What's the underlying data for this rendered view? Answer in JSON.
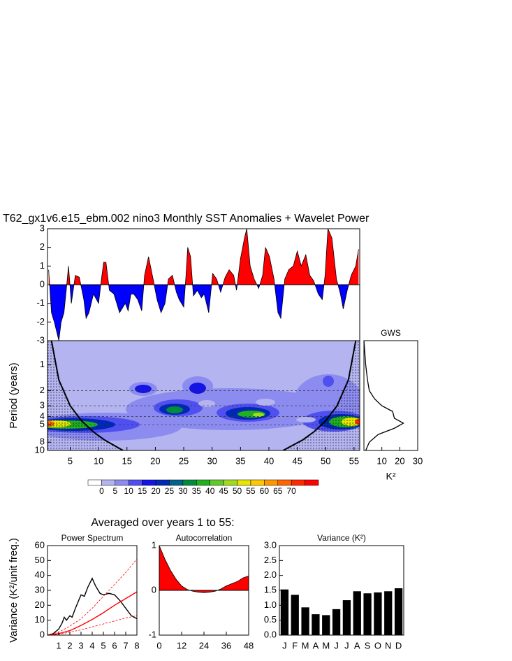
{
  "title": "T62_gx1v6.e15_ebm.002 nino3 Monthly SST Anomalies + Wavelet Power",
  "subheading": "Averaged over years 1 to 55:",
  "chart_data": [
    {
      "type": "area",
      "color": "#ff0000",
      "negative_color": "#0000ff",
      "xlim": [
        1,
        56
      ],
      "ylim": [
        -3,
        3
      ],
      "yticks": [
        -3,
        -2,
        -1,
        0,
        1,
        2,
        3
      ],
      "x": [
        1.2,
        1.7,
        2.2,
        3,
        3.4,
        3.9,
        4.3,
        4.7,
        5.2,
        5.9,
        6.6,
        7.4,
        7.8,
        8.3,
        9.1,
        10,
        10.5,
        10.9,
        11.3,
        11.9,
        12.7,
        13.7,
        14.7,
        15.2,
        15.7,
        16.2,
        16.9,
        17.6,
        18.1,
        18.8,
        19.6,
        20.3,
        21,
        21.7,
        22.3,
        23,
        23.7,
        24.2,
        25,
        25.4,
        25.7,
        26.2,
        26.7,
        27.4,
        28.1,
        28.6,
        29.4,
        30.1,
        30.8,
        31.5,
        32.3,
        33,
        33.8,
        34.3,
        35,
        35.7,
        36.1,
        36.7,
        37.4,
        38.2,
        38.9,
        39.4,
        40.1,
        40.9,
        41.6,
        42.1,
        42.8,
        43.5,
        44.3,
        45,
        45.7,
        46.5,
        47.2,
        47.9,
        48.7,
        49.4,
        49.9,
        50.4,
        51.1,
        51.9,
        52.6,
        53.1,
        53.8,
        54.5,
        55.3,
        55.8
      ],
      "values": [
        0.8,
        -1.5,
        -2,
        -3,
        -2,
        -1.5,
        -0.3,
        1,
        -1,
        0.5,
        0.4,
        -0.8,
        -1.8,
        -1.5,
        -0.5,
        -1,
        0.3,
        1.2,
        1.2,
        -0.3,
        -0.5,
        -1.5,
        -1,
        -1.4,
        -0.5,
        -0.5,
        -0.8,
        -1.4,
        0.5,
        1.5,
        0.3,
        -0.8,
        -1.5,
        -1,
        0.3,
        0.5,
        -0.4,
        -0.8,
        -1.2,
        0.5,
        2,
        1.5,
        -0.6,
        -0.3,
        -0.7,
        -0.5,
        -1.5,
        0.6,
        0.3,
        -0.4,
        0.4,
        0.8,
        0.5,
        -0.3,
        1.4,
        2.5,
        3,
        1,
        0.3,
        -0.2,
        0.5,
        2,
        1.5,
        0.3,
        -1.5,
        -1.8,
        0.3,
        0.8,
        1,
        1.8,
        1,
        1.6,
        0.5,
        0.2,
        -0.5,
        -0.8,
        0.5,
        3,
        2.5,
        0.3,
        -0.5,
        -1.3,
        -0.3,
        0.5,
        1,
        1.9
      ]
    },
    {
      "type": "contour",
      "ylabel": "Period (years)",
      "xlim": [
        1,
        56
      ],
      "xticks": [
        5,
        10,
        15,
        20,
        25,
        30,
        35,
        40,
        45,
        50,
        55
      ],
      "ylim": [
        0.52,
        10
      ],
      "log_y": true,
      "y_reversed": true,
      "yticks": [
        1,
        2,
        3,
        4,
        5,
        8,
        10
      ],
      "hlines": [
        2,
        3,
        4,
        5
      ],
      "cone_of_influence": [
        {
          "x": [
            1.7,
            3,
            5,
            7,
            9,
            11,
            14.3
          ],
          "period": [
            0.52,
            1.5,
            3,
            4.5,
            6,
            7.5,
            10
          ]
        },
        {
          "x": [
            55.3,
            54,
            52,
            50,
            48,
            46,
            42.5
          ],
          "period": [
            0.52,
            1.5,
            3,
            4.5,
            6,
            7.5,
            10
          ]
        }
      ],
      "colorbar": {
        "levels": [
          0,
          5,
          10,
          15,
          20,
          25,
          30,
          35,
          40,
          45,
          50,
          55,
          60,
          65,
          70
        ],
        "colors": [
          "#ffffff",
          "#b4b4f0",
          "#8c8cf0",
          "#5050f0",
          "#1414e6",
          "#0028b4",
          "#00648c",
          "#008c3c",
          "#20b020",
          "#64c828",
          "#a0dc1e",
          "#e6e600",
          "#ffc800",
          "#ff9600",
          "#ff6400",
          "#ff2800",
          "#ff0000"
        ]
      }
    },
    {
      "type": "line",
      "orientation": "horizontal",
      "title": "GWS",
      "xlabel": "K²",
      "xlim": [
        0,
        30
      ],
      "xticks": [
        10,
        20,
        30
      ],
      "ylim": [
        0.52,
        10
      ],
      "log_y": true,
      "y_reversed": true,
      "periods": [
        0.52,
        1,
        1.5,
        2,
        2.5,
        3,
        3.5,
        4.2,
        4.8,
        5.5,
        6.5,
        8,
        10
      ],
      "values": [
        0,
        1,
        2,
        3,
        6,
        10,
        16,
        17,
        22,
        17,
        8,
        3,
        1
      ],
      "color": "#000000"
    },
    {
      "type": "line",
      "title": "Power Spectrum",
      "ylabel": "Variance (K²/unit freq.)",
      "xlim": [
        0,
        8
      ],
      "xticks": [
        1,
        2,
        3,
        4,
        5,
        6,
        7,
        8
      ],
      "ylim": [
        0,
        60
      ],
      "yticks": [
        0,
        10,
        20,
        30,
        40,
        50,
        60
      ],
      "series": [
        {
          "color": "#000000",
          "dash": false,
          "x": [
            0,
            0.5,
            1,
            1.3,
            1.5,
            1.7,
            2,
            2.2,
            2.5,
            3,
            3.3,
            3.6,
            4,
            4.3,
            4.7,
            5,
            5.5,
            6,
            6.5,
            7,
            7.5,
            8
          ],
          "values": [
            0,
            1,
            4,
            8,
            12,
            10,
            13,
            12,
            18,
            27,
            26,
            32,
            38,
            33,
            28,
            27,
            28,
            27,
            23,
            18,
            13,
            11
          ]
        },
        {
          "color": "#ff0000",
          "dash": false,
          "x": [
            0,
            1,
            2,
            3,
            4,
            5,
            6,
            7,
            8
          ],
          "values": [
            0,
            1,
            3,
            6.5,
            10.5,
            15,
            20,
            24.5,
            29
          ]
        },
        {
          "color": "#ff0000",
          "dash": true,
          "x": [
            0,
            1,
            2,
            3,
            4,
            5,
            6,
            7,
            8
          ],
          "values": [
            0,
            2,
            6,
            11,
            18,
            26,
            34,
            42,
            51
          ]
        },
        {
          "color": "#ff0000",
          "dash": true,
          "x": [
            0,
            1,
            2,
            3,
            4,
            5,
            6,
            7,
            8
          ],
          "values": [
            0,
            0.5,
            2,
            3.5,
            5.5,
            7.5,
            9.5,
            11.5,
            13
          ]
        }
      ]
    },
    {
      "type": "area",
      "title": "Autocorrelation",
      "color": "#ff0000",
      "xlim": [
        0,
        48
      ],
      "xticks": [
        0,
        12,
        24,
        36,
        48
      ],
      "ylim": [
        -1,
        1
      ],
      "yticks": [
        -1,
        0,
        1
      ],
      "x": [
        0,
        3,
        6,
        9,
        12,
        15,
        18,
        21,
        24,
        27,
        30,
        33,
        36,
        39,
        42,
        45,
        48
      ],
      "values": [
        1,
        0.7,
        0.45,
        0.25,
        0.1,
        0.02,
        -0.02,
        -0.04,
        -0.05,
        -0.04,
        -0.02,
        0.03,
        0.1,
        0.15,
        0.2,
        0.28,
        0.32
      ]
    },
    {
      "type": "bar",
      "title": "Variance (K²)",
      "color": "#000000",
      "categories": [
        "J",
        "F",
        "M",
        "A",
        "M",
        "J",
        "J",
        "A",
        "S",
        "O",
        "N",
        "D"
      ],
      "values": [
        1.53,
        1.35,
        0.93,
        0.7,
        0.67,
        0.87,
        1.17,
        1.47,
        1.4,
        1.43,
        1.47,
        1.57
      ],
      "ylim": [
        0,
        3
      ],
      "yticks": [
        {
          "value": 0,
          "label": "0.0"
        },
        {
          "value": 0.5,
          "label": "0.5"
        },
        {
          "value": 1,
          "label": "1.0"
        },
        {
          "value": 1.5,
          "label": "1.5"
        },
        {
          "value": 2,
          "label": "2.0"
        },
        {
          "value": 2.5,
          "label": "2.5"
        },
        {
          "value": 3,
          "label": "3.0"
        }
      ]
    }
  ]
}
